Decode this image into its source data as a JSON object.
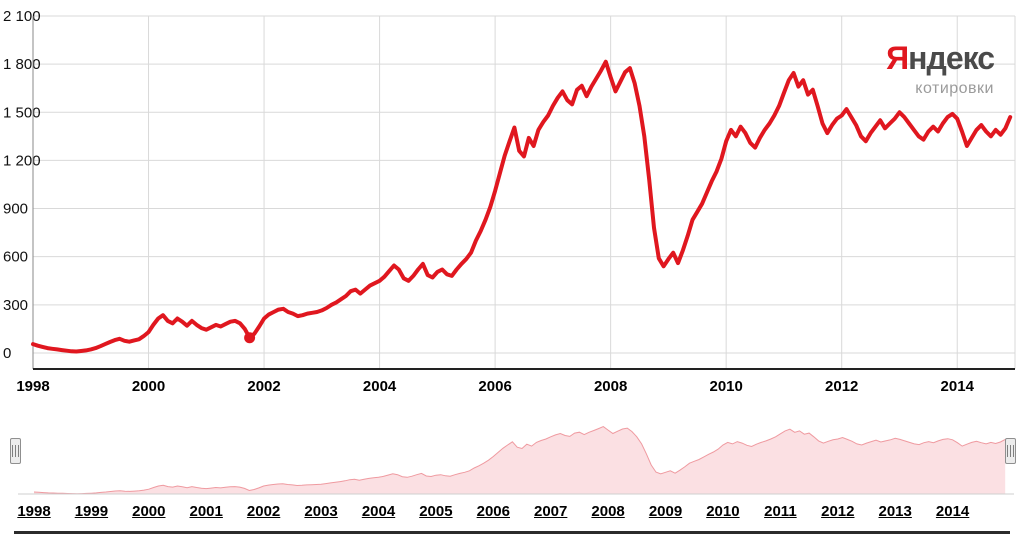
{
  "branding": {
    "logo_first_letter": "Я",
    "logo_rest": "ндекс",
    "logo_sub": "котировки"
  },
  "colors": {
    "line": "#e0171f",
    "brand_red": "#e0171f",
    "grid": "#d9d9d9",
    "axis": "#8a8a8a",
    "axis_strong": "#222222",
    "label": "#111111",
    "nav_fill": "#fbe0e3",
    "nav_stroke": "#ef9aa0",
    "nav_baseline": "#cfcfcf"
  },
  "chart_data": {
    "type": "line",
    "xlim": [
      1998,
      2015
    ],
    "ylim": [
      0,
      2100
    ],
    "grid": true,
    "legend": false,
    "y_ticks": [
      0,
      300,
      600,
      900,
      1200,
      1500,
      1800,
      2100
    ],
    "y_tick_labels": [
      "0",
      "300",
      "600",
      "900",
      "1 200",
      "1 500",
      "1 800",
      "2 100"
    ],
    "x_ticks": [
      1998,
      2000,
      2002,
      2004,
      2006,
      2008,
      2010,
      2012,
      2014
    ],
    "x_tick_labels": [
      "1998",
      "2000",
      "2002",
      "2004",
      "2006",
      "2008",
      "2010",
      "2012",
      "2014"
    ],
    "marker": {
      "x": 2001.75,
      "y": 95
    },
    "series": [
      {
        "name": "index-price",
        "start_year": 1998,
        "interval": "monthly",
        "values": [
          55,
          45,
          38,
          30,
          26,
          22,
          18,
          14,
          10,
          9,
          12,
          16,
          22,
          30,
          42,
          55,
          68,
          80,
          88,
          76,
          70,
          78,
          85,
          105,
          130,
          175,
          215,
          235,
          200,
          185,
          215,
          195,
          170,
          200,
          175,
          155,
          145,
          160,
          175,
          165,
          180,
          195,
          200,
          185,
          150,
          95,
          120,
          165,
          215,
          240,
          255,
          270,
          275,
          255,
          245,
          230,
          235,
          245,
          250,
          255,
          265,
          280,
          300,
          315,
          335,
          355,
          385,
          395,
          370,
          395,
          420,
          435,
          450,
          475,
          510,
          545,
          520,
          465,
          450,
          480,
          520,
          555,
          485,
          470,
          505,
          520,
          490,
          480,
          520,
          555,
          585,
          625,
          700,
          760,
          830,
          910,
          1010,
          1120,
          1230,
          1320,
          1405,
          1260,
          1225,
          1340,
          1290,
          1390,
          1440,
          1480,
          1540,
          1590,
          1630,
          1575,
          1550,
          1640,
          1665,
          1600,
          1660,
          1710,
          1760,
          1815,
          1720,
          1630,
          1690,
          1750,
          1775,
          1680,
          1540,
          1350,
          1080,
          780,
          590,
          540,
          585,
          625,
          560,
          640,
          730,
          830,
          880,
          930,
          1000,
          1070,
          1130,
          1210,
          1320,
          1390,
          1350,
          1410,
          1370,
          1310,
          1280,
          1340,
          1390,
          1430,
          1480,
          1540,
          1620,
          1700,
          1745,
          1660,
          1700,
          1610,
          1640,
          1540,
          1430,
          1370,
          1420,
          1460,
          1480,
          1520,
          1470,
          1420,
          1350,
          1320,
          1370,
          1410,
          1450,
          1400,
          1430,
          1460,
          1500,
          1470,
          1430,
          1390,
          1350,
          1330,
          1380,
          1410,
          1380,
          1430,
          1470,
          1490,
          1460,
          1380,
          1290,
          1340,
          1390,
          1420,
          1380,
          1350,
          1390,
          1360,
          1400,
          1470
        ]
      }
    ]
  },
  "navigator": {
    "years": [
      "1998",
      "1999",
      "2000",
      "2001",
      "2002",
      "2003",
      "2004",
      "2005",
      "2006",
      "2007",
      "2008",
      "2009",
      "2010",
      "2011",
      "2012",
      "2013",
      "2014"
    ]
  }
}
